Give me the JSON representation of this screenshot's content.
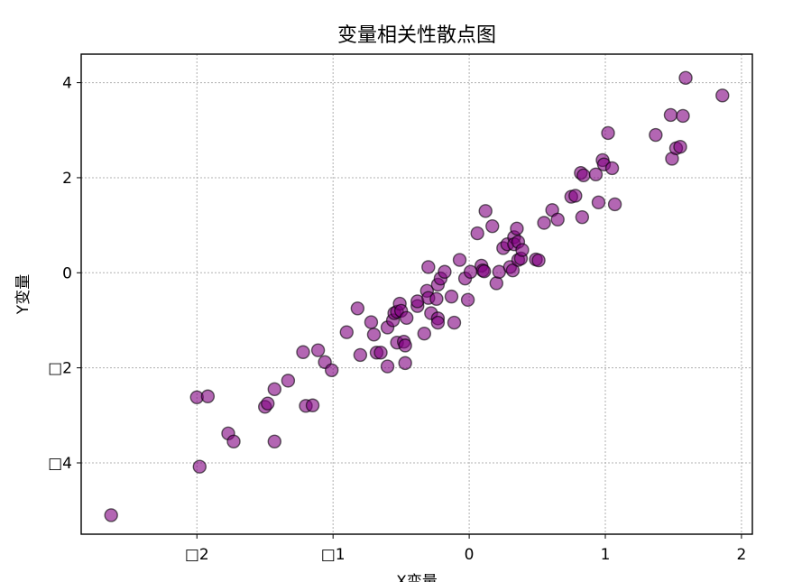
{
  "chart_data": {
    "type": "scatter",
    "title": "变量相关性散点图",
    "xlabel": "X变量",
    "ylabel": "Y变量",
    "xlim": [
      -2.85,
      2.08
    ],
    "ylim": [
      -5.5,
      4.6
    ],
    "xticks": [
      -2,
      -1,
      0,
      1,
      2
    ],
    "xtick_labels": [
      "□2",
      "□1",
      "0",
      "1",
      "2"
    ],
    "yticks": [
      4,
      2,
      0,
      -2,
      -4
    ],
    "ytick_labels": [
      "4",
      "2",
      "0",
      "□2",
      "□4"
    ],
    "grid": true,
    "marker_color": "#800080",
    "marker_opacity": 0.6,
    "points": [
      [
        -2.63,
        -5.1
      ],
      [
        -2.0,
        -2.62
      ],
      [
        -1.98,
        -4.08
      ],
      [
        -1.92,
        -2.6
      ],
      [
        -1.77,
        -3.38
      ],
      [
        -1.73,
        -3.55
      ],
      [
        -1.5,
        -2.82
      ],
      [
        -1.48,
        -2.75
      ],
      [
        -1.43,
        -2.45
      ],
      [
        -1.43,
        -3.55
      ],
      [
        -1.33,
        -2.27
      ],
      [
        -1.22,
        -1.67
      ],
      [
        -1.2,
        -2.8
      ],
      [
        -1.15,
        -2.79
      ],
      [
        -1.11,
        -1.63
      ],
      [
        -1.06,
        -1.88
      ],
      [
        -1.01,
        -2.05
      ],
      [
        -0.9,
        -1.25
      ],
      [
        -0.82,
        -0.75
      ],
      [
        -0.8,
        -1.73
      ],
      [
        -0.72,
        -1.04
      ],
      [
        -0.7,
        -1.3
      ],
      [
        -0.68,
        -1.68
      ],
      [
        -0.65,
        -1.68
      ],
      [
        -0.6,
        -1.15
      ],
      [
        -0.6,
        -1.97
      ],
      [
        -0.56,
        -1.0
      ],
      [
        -0.55,
        -0.85
      ],
      [
        -0.53,
        -0.82
      ],
      [
        -0.53,
        -1.47
      ],
      [
        -0.51,
        -0.65
      ],
      [
        -0.5,
        -0.8
      ],
      [
        -0.48,
        -1.45
      ],
      [
        -0.47,
        -1.53
      ],
      [
        -0.47,
        -1.9
      ],
      [
        -0.46,
        -0.95
      ],
      [
        -0.38,
        -0.7
      ],
      [
        -0.38,
        -0.6
      ],
      [
        -0.33,
        -1.28
      ],
      [
        -0.31,
        -0.38
      ],
      [
        -0.3,
        -0.53
      ],
      [
        -0.3,
        0.12
      ],
      [
        -0.28,
        -0.85
      ],
      [
        -0.24,
        -0.55
      ],
      [
        -0.23,
        -0.25
      ],
      [
        -0.23,
        -0.96
      ],
      [
        -0.23,
        -1.05
      ],
      [
        -0.21,
        -0.12
      ],
      [
        -0.18,
        0.02
      ],
      [
        -0.13,
        -0.5
      ],
      [
        -0.11,
        -1.05
      ],
      [
        -0.07,
        0.27
      ],
      [
        -0.03,
        -0.12
      ],
      [
        -0.01,
        -0.57
      ],
      [
        0.01,
        0.02
      ],
      [
        0.06,
        0.83
      ],
      [
        0.09,
        0.15
      ],
      [
        0.1,
        0.05
      ],
      [
        0.11,
        0.03
      ],
      [
        0.12,
        1.3
      ],
      [
        0.17,
        0.98
      ],
      [
        0.2,
        -0.22
      ],
      [
        0.22,
        0.02
      ],
      [
        0.25,
        0.52
      ],
      [
        0.28,
        0.6
      ],
      [
        0.3,
        0.12
      ],
      [
        0.32,
        0.05
      ],
      [
        0.33,
        0.75
      ],
      [
        0.33,
        0.6
      ],
      [
        0.35,
        0.93
      ],
      [
        0.36,
        0.65
      ],
      [
        0.36,
        0.27
      ],
      [
        0.38,
        0.3
      ],
      [
        0.39,
        0.48
      ],
      [
        0.49,
        0.28
      ],
      [
        0.51,
        0.26
      ],
      [
        0.55,
        1.05
      ],
      [
        0.61,
        1.32
      ],
      [
        0.65,
        1.12
      ],
      [
        0.75,
        1.6
      ],
      [
        0.78,
        1.62
      ],
      [
        0.82,
        2.1
      ],
      [
        0.83,
        1.17
      ],
      [
        0.84,
        2.05
      ],
      [
        0.93,
        2.07
      ],
      [
        0.95,
        1.48
      ],
      [
        0.98,
        2.37
      ],
      [
        0.99,
        2.28
      ],
      [
        1.02,
        2.94
      ],
      [
        1.05,
        2.2
      ],
      [
        1.07,
        1.44
      ],
      [
        1.37,
        2.9
      ],
      [
        1.48,
        3.32
      ],
      [
        1.49,
        2.4
      ],
      [
        1.52,
        2.62
      ],
      [
        1.55,
        2.65
      ],
      [
        1.57,
        3.3
      ],
      [
        1.59,
        4.1
      ],
      [
        1.86,
        3.73
      ]
    ]
  }
}
